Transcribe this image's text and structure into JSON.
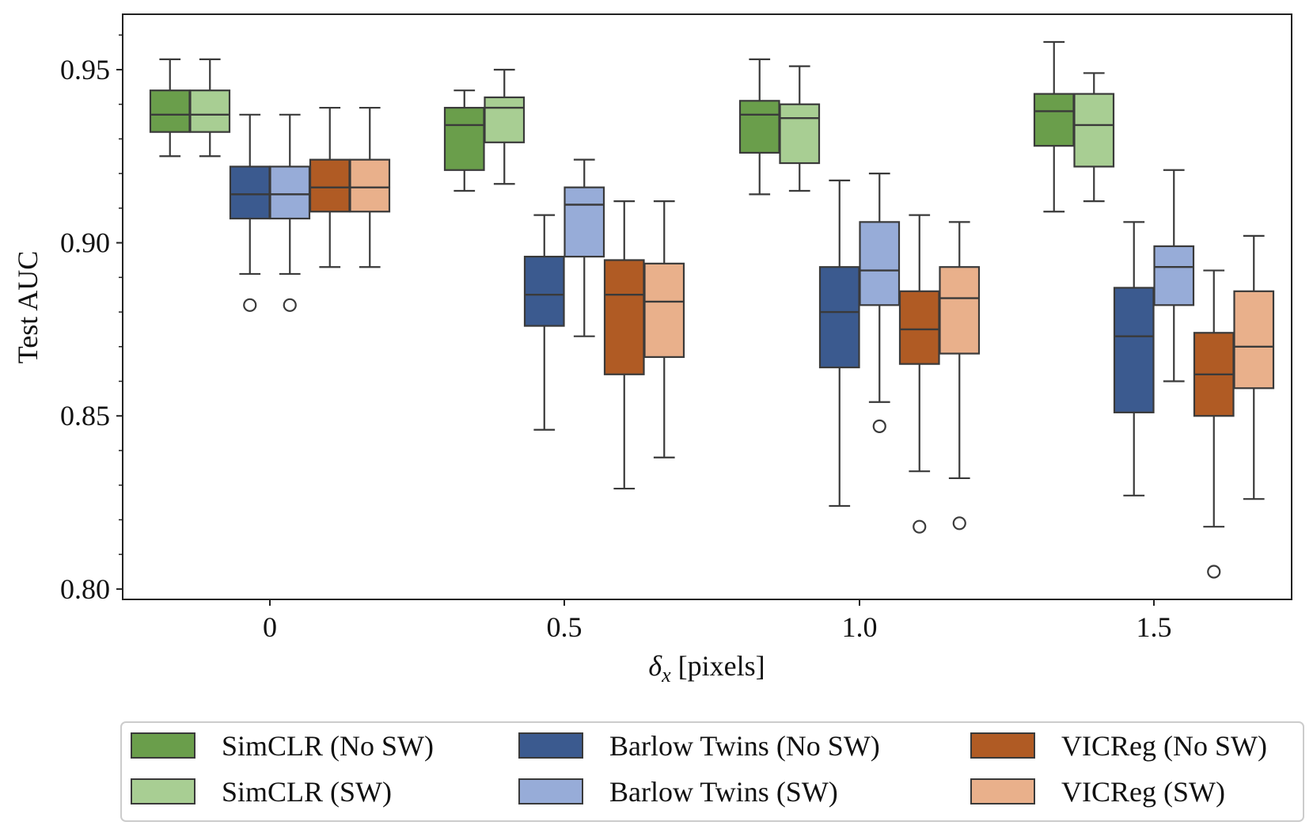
{
  "chart_data": {
    "type": "boxplot",
    "xlabel": "δx [pixels]",
    "xlabel_main": "δ",
    "xlabel_sub": "x",
    "xlabel_unit": " [pixels]",
    "ylabel": "Test AUC",
    "ylim": [
      0.797,
      0.966
    ],
    "yticks": [
      0.8,
      0.85,
      0.9,
      0.95
    ],
    "ytick_labels": [
      "0.80",
      "0.85",
      "0.90",
      "0.95"
    ],
    "categories": [
      "0",
      "0.5",
      "1.0",
      "1.5"
    ],
    "series": [
      {
        "name": "SimCLR (No SW)",
        "color": "#6a9e4b",
        "boxes": [
          {
            "whislo": 0.925,
            "q1": 0.932,
            "med": 0.937,
            "q3": 0.944,
            "whishi": 0.953,
            "fliers": []
          },
          {
            "whislo": 0.915,
            "q1": 0.921,
            "med": 0.934,
            "q3": 0.939,
            "whishi": 0.944,
            "fliers": []
          },
          {
            "whislo": 0.914,
            "q1": 0.926,
            "med": 0.937,
            "q3": 0.941,
            "whishi": 0.953,
            "fliers": []
          },
          {
            "whislo": 0.909,
            "q1": 0.928,
            "med": 0.938,
            "q3": 0.943,
            "whishi": 0.958,
            "fliers": []
          }
        ]
      },
      {
        "name": "SimCLR (SW)",
        "color": "#a8ce93",
        "boxes": [
          {
            "whislo": 0.925,
            "q1": 0.932,
            "med": 0.937,
            "q3": 0.944,
            "whishi": 0.953,
            "fliers": []
          },
          {
            "whislo": 0.917,
            "q1": 0.929,
            "med": 0.939,
            "q3": 0.942,
            "whishi": 0.95,
            "fliers": []
          },
          {
            "whislo": 0.915,
            "q1": 0.923,
            "med": 0.936,
            "q3": 0.94,
            "whishi": 0.951,
            "fliers": []
          },
          {
            "whislo": 0.912,
            "q1": 0.922,
            "med": 0.934,
            "q3": 0.943,
            "whishi": 0.949,
            "fliers": []
          }
        ]
      },
      {
        "name": "Barlow Twins (No SW)",
        "color": "#3b5a8f",
        "boxes": [
          {
            "whislo": 0.891,
            "q1": 0.907,
            "med": 0.914,
            "q3": 0.922,
            "whishi": 0.937,
            "fliers": [
              0.882
            ]
          },
          {
            "whislo": 0.846,
            "q1": 0.876,
            "med": 0.885,
            "q3": 0.896,
            "whishi": 0.908,
            "fliers": []
          },
          {
            "whislo": 0.824,
            "q1": 0.864,
            "med": 0.88,
            "q3": 0.893,
            "whishi": 0.918,
            "fliers": []
          },
          {
            "whislo": 0.827,
            "q1": 0.851,
            "med": 0.873,
            "q3": 0.887,
            "whishi": 0.906,
            "fliers": []
          }
        ]
      },
      {
        "name": "Barlow Twins (SW)",
        "color": "#97acd8",
        "boxes": [
          {
            "whislo": 0.891,
            "q1": 0.907,
            "med": 0.914,
            "q3": 0.922,
            "whishi": 0.937,
            "fliers": [
              0.882
            ]
          },
          {
            "whislo": 0.873,
            "q1": 0.896,
            "med": 0.911,
            "q3": 0.916,
            "whishi": 0.924,
            "fliers": []
          },
          {
            "whislo": 0.854,
            "q1": 0.882,
            "med": 0.892,
            "q3": 0.906,
            "whishi": 0.92,
            "fliers": [
              0.847
            ]
          },
          {
            "whislo": 0.86,
            "q1": 0.882,
            "med": 0.893,
            "q3": 0.899,
            "whishi": 0.921,
            "fliers": []
          }
        ]
      },
      {
        "name": "VICReg (No SW)",
        "color": "#b05b24",
        "boxes": [
          {
            "whislo": 0.893,
            "q1": 0.909,
            "med": 0.916,
            "q3": 0.924,
            "whishi": 0.939,
            "fliers": []
          },
          {
            "whislo": 0.829,
            "q1": 0.862,
            "med": 0.885,
            "q3": 0.895,
            "whishi": 0.912,
            "fliers": []
          },
          {
            "whislo": 0.834,
            "q1": 0.865,
            "med": 0.875,
            "q3": 0.886,
            "whishi": 0.908,
            "fliers": [
              0.818
            ]
          },
          {
            "whislo": 0.818,
            "q1": 0.85,
            "med": 0.862,
            "q3": 0.874,
            "whishi": 0.892,
            "fliers": [
              0.805
            ]
          }
        ]
      },
      {
        "name": "VICReg (SW)",
        "color": "#e9b08b",
        "boxes": [
          {
            "whislo": 0.893,
            "q1": 0.909,
            "med": 0.916,
            "q3": 0.924,
            "whishi": 0.939,
            "fliers": []
          },
          {
            "whislo": 0.838,
            "q1": 0.867,
            "med": 0.883,
            "q3": 0.894,
            "whishi": 0.912,
            "fliers": []
          },
          {
            "whislo": 0.832,
            "q1": 0.868,
            "med": 0.884,
            "q3": 0.893,
            "whishi": 0.906,
            "fliers": [
              0.819
            ]
          },
          {
            "whislo": 0.826,
            "q1": 0.858,
            "med": 0.87,
            "q3": 0.886,
            "whishi": 0.902,
            "fliers": []
          }
        ]
      }
    ],
    "legend": {
      "position": "bottom",
      "columns": 3,
      "entries": [
        "SimCLR (No SW)",
        "SimCLR (SW)",
        "Barlow Twins (No SW)",
        "Barlow Twins (SW)",
        "VICReg (No SW)",
        "VICReg (SW)"
      ]
    },
    "grid": false
  }
}
